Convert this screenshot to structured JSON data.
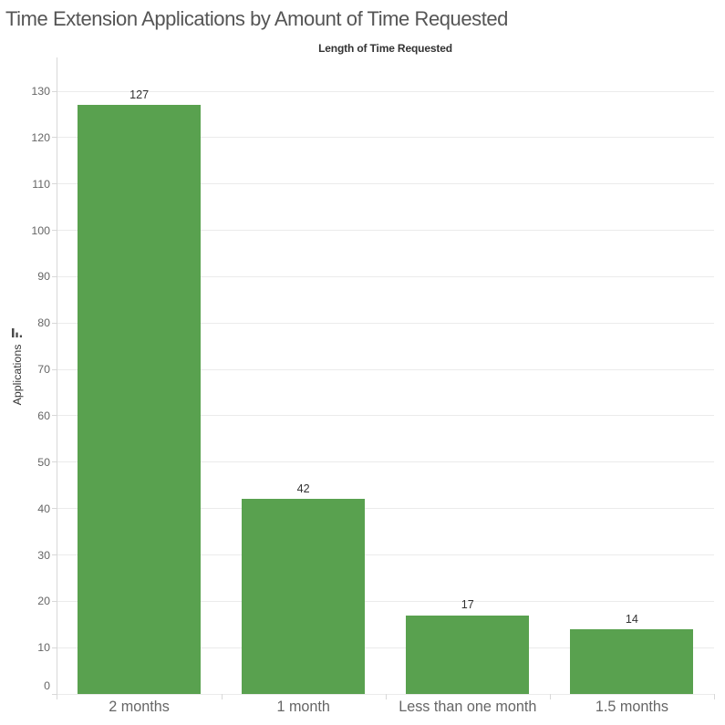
{
  "title": "Time Extension Applications by Amount of Time Requested",
  "column_field_label": "Length of Time Requested",
  "y_axis": {
    "label": "Applications",
    "sort_icon": "sort-descending-bars-icon"
  },
  "chart_data": {
    "type": "bar",
    "title": "Time Extension Applications by Amount of Time Requested",
    "column_header": "Length of Time Requested",
    "xlabel": "",
    "ylabel": "Applications",
    "categories": [
      "2 months",
      "1 month",
      "Less than one month",
      "1.5 months"
    ],
    "values": [
      127,
      42,
      17,
      14
    ],
    "bar_labels": [
      "127",
      "42",
      "17",
      "14"
    ],
    "y_ticks": [
      0,
      10,
      20,
      30,
      40,
      50,
      60,
      70,
      80,
      90,
      100,
      110,
      120,
      130
    ],
    "ylim": [
      0,
      137
    ],
    "grid": true,
    "legend": false,
    "sort_order": "descending",
    "bar_color": "#59a14f",
    "colors": {
      "bar": "#59a14f",
      "title_text": "#555555",
      "header_text": "#333333",
      "tick_label_text": "#666666",
      "bar_label_text": "#333333",
      "gridline": "#ebebeb",
      "axis_line": "#d8d8d8"
    }
  }
}
